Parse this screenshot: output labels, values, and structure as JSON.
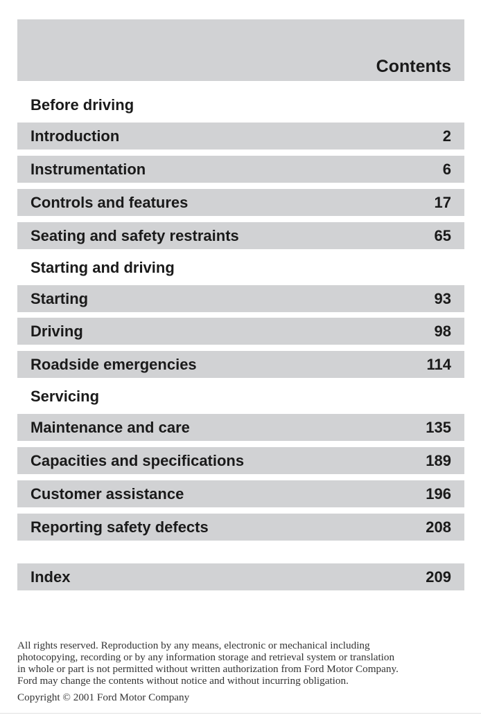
{
  "header": {
    "title": "Contents"
  },
  "sections": {
    "before_driving": "Before driving",
    "starting_and_driving": "Starting and driving",
    "servicing": "Servicing"
  },
  "entries": [
    {
      "label": "Introduction",
      "page": "2"
    },
    {
      "label": "Instrumentation",
      "page": "6"
    },
    {
      "label": "Controls and features",
      "page": "17"
    },
    {
      "label": "Seating and safety restraints",
      "page": "65"
    },
    {
      "label": "Starting",
      "page": "93"
    },
    {
      "label": "Driving",
      "page": "98"
    },
    {
      "label": "Roadside emergencies",
      "page": "114"
    },
    {
      "label": "Maintenance and care",
      "page": "135"
    },
    {
      "label": "Capacities and specifications",
      "page": "189"
    },
    {
      "label": "Customer assistance",
      "page": "196"
    },
    {
      "label": "Reporting safety defects",
      "page": "208"
    },
    {
      "label": "Index",
      "page": "209"
    }
  ],
  "legal": {
    "line1": "All rights reserved. Reproduction by any means, electronic or mechanical including",
    "line2": "photocopying, recording or by any information storage and retrieval system or translation",
    "line3": "in whole or part is not permitted without written authorization from Ford Motor Company.",
    "line4": "Ford may change the contents without notice and without incurring obligation.",
    "copyright": "Copyright © 2001 Ford Motor Company"
  }
}
